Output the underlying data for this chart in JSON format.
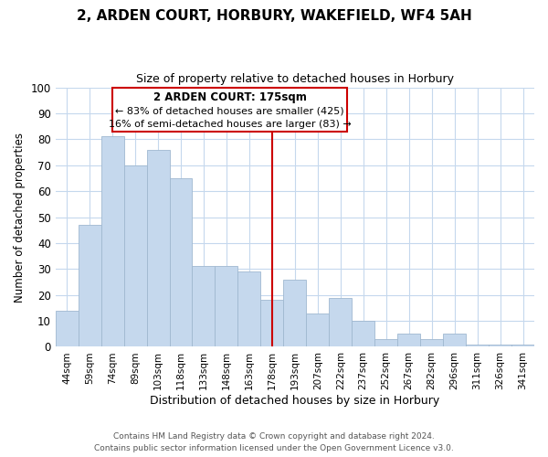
{
  "title": "2, ARDEN COURT, HORBURY, WAKEFIELD, WF4 5AH",
  "subtitle": "Size of property relative to detached houses in Horbury",
  "xlabel": "Distribution of detached houses by size in Horbury",
  "ylabel": "Number of detached properties",
  "categories": [
    "44sqm",
    "59sqm",
    "74sqm",
    "89sqm",
    "103sqm",
    "118sqm",
    "133sqm",
    "148sqm",
    "163sqm",
    "178sqm",
    "193sqm",
    "207sqm",
    "222sqm",
    "237sqm",
    "252sqm",
    "267sqm",
    "282sqm",
    "296sqm",
    "311sqm",
    "326sqm",
    "341sqm"
  ],
  "values": [
    14,
    47,
    81,
    70,
    76,
    65,
    31,
    31,
    29,
    18,
    26,
    13,
    19,
    10,
    3,
    5,
    3,
    5,
    1,
    1,
    1
  ],
  "bar_color": "#c5d8ed",
  "bar_edge_color": "#a0b8d0",
  "highlight_line_index": 9,
  "annotation_title": "2 ARDEN COURT: 175sqm",
  "annotation_line1": "← 83% of detached houses are smaller (425)",
  "annotation_line2": "16% of semi-detached houses are larger (83) →",
  "annotation_box_color": "#ffffff",
  "annotation_box_edge_color": "#cc0000",
  "line_color": "#cc0000",
  "ylim": [
    0,
    100
  ],
  "yticks": [
    0,
    10,
    20,
    30,
    40,
    50,
    60,
    70,
    80,
    90,
    100
  ],
  "footer1": "Contains HM Land Registry data © Crown copyright and database right 2024.",
  "footer2": "Contains public sector information licensed under the Open Government Licence v3.0.",
  "background_color": "#ffffff",
  "grid_color": "#c5d8ed"
}
